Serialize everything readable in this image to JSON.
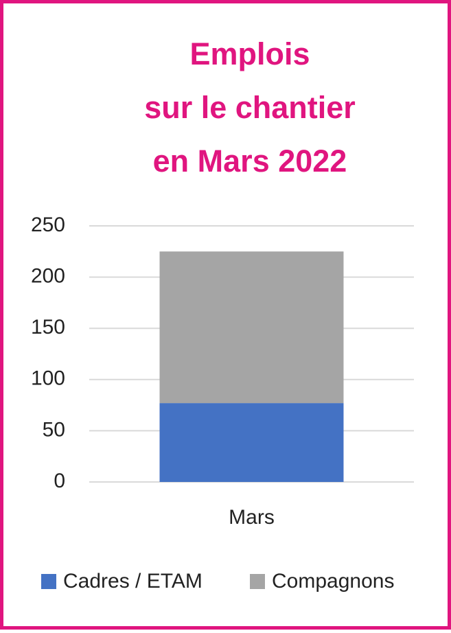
{
  "chart_data": {
    "type": "stacked-bar",
    "title": [
      "Emplois",
      "sur le chantier",
      "en Mars 2022"
    ],
    "title_color": "#e0157f",
    "categories": [
      "Mars"
    ],
    "series": [
      {
        "name": "Cadres / ETAM",
        "color": "#4472c4",
        "values": [
          77
        ]
      },
      {
        "name": "Compagnons",
        "color": "#a5a5a5",
        "values": [
          148
        ]
      }
    ],
    "ylim": [
      0,
      250
    ],
    "yticks": [
      0,
      50,
      100,
      150,
      200,
      250
    ],
    "grid": true,
    "legend": "bottom"
  }
}
